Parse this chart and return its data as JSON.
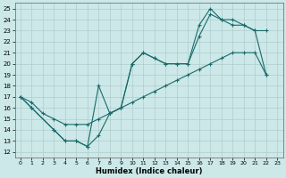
{
  "xlabel": "Humidex (Indice chaleur)",
  "bg_color": "#cce8e8",
  "grid_color": "#b0cccc",
  "line_color": "#1a6b6b",
  "xlim": [
    -0.5,
    23.5
  ],
  "ylim": [
    11.5,
    25.5
  ],
  "xticks": [
    0,
    1,
    2,
    3,
    4,
    5,
    6,
    7,
    8,
    9,
    10,
    11,
    12,
    13,
    14,
    15,
    16,
    17,
    18,
    19,
    20,
    21,
    22,
    23
  ],
  "yticks": [
    12,
    13,
    14,
    15,
    16,
    17,
    18,
    19,
    20,
    21,
    22,
    23,
    24,
    25
  ],
  "series1_x": [
    0,
    1,
    2,
    3,
    4,
    5,
    6,
    7,
    8,
    9,
    10,
    11,
    12,
    13,
    14,
    15,
    16,
    17,
    18,
    19,
    20,
    21,
    22
  ],
  "series1_y": [
    17.0,
    16.5,
    15.5,
    15.0,
    14.5,
    14.5,
    14.5,
    15.0,
    15.5,
    16.0,
    16.5,
    17.0,
    17.5,
    18.0,
    18.5,
    19.0,
    19.5,
    20.0,
    20.5,
    21.0,
    21.0,
    21.0,
    19.0
  ],
  "series2_x": [
    0,
    1,
    3,
    4,
    5,
    6,
    7,
    8,
    9,
    10,
    11,
    12,
    13,
    14,
    15,
    16,
    17,
    18,
    19,
    20,
    21,
    22
  ],
  "series2_y": [
    17.0,
    16.0,
    14.0,
    13.0,
    13.0,
    12.5,
    18.0,
    15.5,
    16.0,
    20.0,
    21.0,
    20.5,
    20.0,
    20.0,
    20.0,
    22.5,
    24.5,
    24.0,
    23.5,
    23.5,
    23.0,
    19.0
  ],
  "series3_x": [
    0,
    1,
    3,
    4,
    5,
    6,
    7,
    8,
    9,
    10,
    11,
    12,
    13,
    14,
    15,
    16,
    17,
    18,
    19,
    20,
    21,
    22
  ],
  "series3_y": [
    17.0,
    16.0,
    14.0,
    13.0,
    13.0,
    12.5,
    13.5,
    15.5,
    16.0,
    20.0,
    21.0,
    20.5,
    20.0,
    20.0,
    20.0,
    23.5,
    25.0,
    24.0,
    24.0,
    23.5,
    23.0,
    23.0
  ]
}
